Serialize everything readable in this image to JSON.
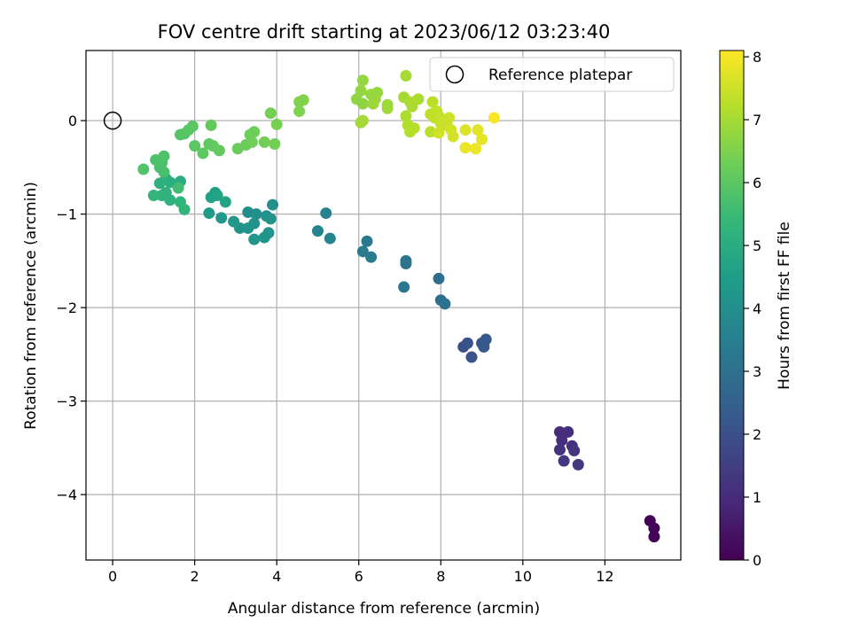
{
  "chart_data": {
    "type": "scatter",
    "title": "FOV centre drift starting at 2023/06/12 03:23:40",
    "xlabel": "Angular distance from reference (arcmin)",
    "ylabel": "Rotation from reference (arcmin)",
    "xlim": [
      -0.65,
      13.85
    ],
    "ylim": [
      -4.7,
      0.75
    ],
    "xticks": [
      0,
      2,
      4,
      6,
      8,
      10,
      12
    ],
    "yticks": [
      0,
      -1,
      -2,
      -3,
      -4
    ],
    "xtick_labels": [
      "0",
      "2",
      "4",
      "6",
      "8",
      "10",
      "12"
    ],
    "ytick_labels": [
      "0",
      "−1",
      "−2",
      "−3",
      "−4"
    ],
    "grid": true,
    "legend": {
      "label": "Reference platepar",
      "placement": "top-right",
      "marker": "open-circle"
    },
    "reference_point": {
      "x": 0,
      "y": 0
    },
    "colorbar": {
      "label": "Hours from first FF file",
      "colormap": "viridis",
      "range": [
        0,
        8.1
      ],
      "ticks": [
        0,
        1,
        2,
        3,
        4,
        5,
        6,
        7,
        8
      ],
      "tick_labels": [
        "0",
        "1",
        "2",
        "3",
        "4",
        "5",
        "6",
        "7",
        "8"
      ],
      "stops": [
        "#440154",
        "#482878",
        "#3e4989",
        "#31688e",
        "#26828e",
        "#1f9e89",
        "#35b779",
        "#6ece58",
        "#b5de2b",
        "#fde725"
      ]
    },
    "points": [
      {
        "x": 13.1,
        "y": -4.28,
        "t": 0.05
      },
      {
        "x": 13.2,
        "y": -4.36,
        "t": 0.08
      },
      {
        "x": 13.2,
        "y": -4.45,
        "t": 0.1
      },
      {
        "x": 10.9,
        "y": -3.33,
        "t": 1.0
      },
      {
        "x": 11.1,
        "y": -3.33,
        "t": 1.05
      },
      {
        "x": 10.95,
        "y": -3.42,
        "t": 1.1
      },
      {
        "x": 11.2,
        "y": -3.48,
        "t": 1.15
      },
      {
        "x": 10.9,
        "y": -3.52,
        "t": 1.2
      },
      {
        "x": 11.25,
        "y": -3.53,
        "t": 1.25
      },
      {
        "x": 11.0,
        "y": -3.64,
        "t": 1.3
      },
      {
        "x": 11.35,
        "y": -3.68,
        "t": 1.35
      },
      {
        "x": 8.55,
        "y": -2.42,
        "t": 2.0
      },
      {
        "x": 8.65,
        "y": -2.38,
        "t": 2.05
      },
      {
        "x": 8.75,
        "y": -2.53,
        "t": 2.1
      },
      {
        "x": 9.0,
        "y": -2.38,
        "t": 2.15
      },
      {
        "x": 9.05,
        "y": -2.42,
        "t": 2.2
      },
      {
        "x": 9.1,
        "y": -2.34,
        "t": 2.25
      },
      {
        "x": 7.95,
        "y": -1.69,
        "t": 2.9
      },
      {
        "x": 8.0,
        "y": -1.92,
        "t": 2.95
      },
      {
        "x": 8.1,
        "y": -1.96,
        "t": 3.0
      },
      {
        "x": 7.15,
        "y": -1.5,
        "t": 3.1
      },
      {
        "x": 7.15,
        "y": -1.53,
        "t": 3.12
      },
      {
        "x": 7.1,
        "y": -1.78,
        "t": 3.15
      },
      {
        "x": 6.2,
        "y": -1.29,
        "t": 3.3
      },
      {
        "x": 6.1,
        "y": -1.4,
        "t": 3.35
      },
      {
        "x": 6.3,
        "y": -1.46,
        "t": 3.4
      },
      {
        "x": 5.2,
        "y": -0.99,
        "t": 3.6
      },
      {
        "x": 5.0,
        "y": -1.18,
        "t": 3.65
      },
      {
        "x": 5.3,
        "y": -1.26,
        "t": 3.7
      },
      {
        "x": 3.3,
        "y": -0.98,
        "t": 4.0
      },
      {
        "x": 3.5,
        "y": -1.0,
        "t": 4.03
      },
      {
        "x": 3.9,
        "y": -0.9,
        "t": 4.05
      },
      {
        "x": 3.75,
        "y": -1.02,
        "t": 4.08
      },
      {
        "x": 3.85,
        "y": -1.05,
        "t": 4.1
      },
      {
        "x": 3.45,
        "y": -1.1,
        "t": 4.12
      },
      {
        "x": 3.1,
        "y": -1.15,
        "t": 4.15
      },
      {
        "x": 3.3,
        "y": -1.15,
        "t": 4.18
      },
      {
        "x": 3.8,
        "y": -1.2,
        "t": 4.2
      },
      {
        "x": 3.7,
        "y": -1.25,
        "t": 4.22
      },
      {
        "x": 3.45,
        "y": -1.27,
        "t": 4.25
      },
      {
        "x": 2.95,
        "y": -1.08,
        "t": 4.3
      },
      {
        "x": 2.65,
        "y": -1.04,
        "t": 4.35
      },
      {
        "x": 2.35,
        "y": -0.99,
        "t": 4.4
      },
      {
        "x": 2.4,
        "y": -0.82,
        "t": 4.6
      },
      {
        "x": 2.5,
        "y": -0.77,
        "t": 4.62
      },
      {
        "x": 2.55,
        "y": -0.8,
        "t": 4.65
      },
      {
        "x": 2.75,
        "y": -0.87,
        "t": 4.7
      },
      {
        "x": 1.65,
        "y": -0.65,
        "t": 5.0
      },
      {
        "x": 1.4,
        "y": -0.66,
        "t": 5.05
      },
      {
        "x": 1.3,
        "y": -0.62,
        "t": 5.08
      },
      {
        "x": 1.15,
        "y": -0.67,
        "t": 5.1
      },
      {
        "x": 1.3,
        "y": -0.77,
        "t": 5.15
      },
      {
        "x": 1.2,
        "y": -0.8,
        "t": 5.18
      },
      {
        "x": 1.4,
        "y": -0.85,
        "t": 5.2
      },
      {
        "x": 1.65,
        "y": -0.87,
        "t": 5.25
      },
      {
        "x": 1.75,
        "y": -0.95,
        "t": 5.3
      },
      {
        "x": 1.0,
        "y": -0.8,
        "t": 5.35
      },
      {
        "x": 1.6,
        "y": -0.72,
        "t": 5.6
      },
      {
        "x": 1.25,
        "y": -0.55,
        "t": 5.7
      },
      {
        "x": 1.15,
        "y": -0.5,
        "t": 5.72
      },
      {
        "x": 1.2,
        "y": -0.45,
        "t": 5.75
      },
      {
        "x": 1.05,
        "y": -0.42,
        "t": 5.78
      },
      {
        "x": 1.25,
        "y": -0.38,
        "t": 5.8
      },
      {
        "x": 0.75,
        "y": -0.52,
        "t": 5.85
      },
      {
        "x": 1.65,
        "y": -0.15,
        "t": 5.9
      },
      {
        "x": 1.75,
        "y": -0.14,
        "t": 5.92
      },
      {
        "x": 1.85,
        "y": -0.1,
        "t": 5.95
      },
      {
        "x": 1.95,
        "y": -0.06,
        "t": 5.98
      },
      {
        "x": 2.0,
        "y": -0.27,
        "t": 6.0
      },
      {
        "x": 2.2,
        "y": -0.35,
        "t": 6.05
      },
      {
        "x": 2.35,
        "y": -0.25,
        "t": 6.08
      },
      {
        "x": 2.45,
        "y": -0.27,
        "t": 6.1
      },
      {
        "x": 2.4,
        "y": -0.05,
        "t": 6.12
      },
      {
        "x": 2.6,
        "y": -0.32,
        "t": 6.15
      },
      {
        "x": 3.05,
        "y": -0.3,
        "t": 6.2
      },
      {
        "x": 3.25,
        "y": -0.26,
        "t": 6.22
      },
      {
        "x": 3.35,
        "y": -0.15,
        "t": 6.25
      },
      {
        "x": 3.45,
        "y": -0.12,
        "t": 6.28
      },
      {
        "x": 3.4,
        "y": -0.23,
        "t": 6.3
      },
      {
        "x": 3.7,
        "y": -0.23,
        "t": 6.32
      },
      {
        "x": 3.95,
        "y": -0.25,
        "t": 6.35
      },
      {
        "x": 3.85,
        "y": 0.08,
        "t": 6.38
      },
      {
        "x": 4.0,
        "y": -0.04,
        "t": 6.4
      },
      {
        "x": 4.55,
        "y": 0.1,
        "t": 6.5
      },
      {
        "x": 4.55,
        "y": 0.2,
        "t": 6.52
      },
      {
        "x": 4.65,
        "y": 0.22,
        "t": 6.55
      },
      {
        "x": 5.95,
        "y": 0.23,
        "t": 6.7
      },
      {
        "x": 6.1,
        "y": 0.18,
        "t": 6.72
      },
      {
        "x": 6.05,
        "y": 0.32,
        "t": 6.75
      },
      {
        "x": 6.1,
        "y": 0.43,
        "t": 6.78
      },
      {
        "x": 6.3,
        "y": 0.28,
        "t": 6.8
      },
      {
        "x": 6.45,
        "y": 0.3,
        "t": 6.82
      },
      {
        "x": 6.4,
        "y": 0.23,
        "t": 6.85
      },
      {
        "x": 6.35,
        "y": 0.18,
        "t": 6.88
      },
      {
        "x": 6.7,
        "y": 0.17,
        "t": 6.9
      },
      {
        "x": 6.7,
        "y": 0.13,
        "t": 6.92
      },
      {
        "x": 6.05,
        "y": -0.02,
        "t": 6.95
      },
      {
        "x": 6.1,
        "y": 0.0,
        "t": 6.97
      },
      {
        "x": 7.1,
        "y": 0.25,
        "t": 7.0
      },
      {
        "x": 7.15,
        "y": 0.48,
        "t": 7.02
      },
      {
        "x": 7.25,
        "y": 0.2,
        "t": 7.05
      },
      {
        "x": 7.3,
        "y": 0.15,
        "t": 7.08
      },
      {
        "x": 7.45,
        "y": 0.23,
        "t": 7.1
      },
      {
        "x": 7.15,
        "y": 0.05,
        "t": 7.12
      },
      {
        "x": 7.2,
        "y": -0.05,
        "t": 7.15
      },
      {
        "x": 7.25,
        "y": -0.12,
        "t": 7.18
      },
      {
        "x": 7.35,
        "y": -0.08,
        "t": 7.2
      },
      {
        "x": 7.75,
        "y": -0.12,
        "t": 7.25
      },
      {
        "x": 7.8,
        "y": 0.2,
        "t": 7.28
      },
      {
        "x": 7.75,
        "y": 0.07,
        "t": 7.3
      },
      {
        "x": 7.85,
        "y": 0.03,
        "t": 7.32
      },
      {
        "x": 7.9,
        "y": 0.1,
        "t": 7.35
      },
      {
        "x": 7.95,
        "y": 0.05,
        "t": 7.38
      },
      {
        "x": 8.0,
        "y": -0.03,
        "t": 7.4
      },
      {
        "x": 8.05,
        "y": 0.0,
        "t": 7.42
      },
      {
        "x": 8.1,
        "y": 0.0,
        "t": 7.45
      },
      {
        "x": 8.15,
        "y": -0.05,
        "t": 7.48
      },
      {
        "x": 8.2,
        "y": 0.03,
        "t": 7.5
      },
      {
        "x": 7.95,
        "y": -0.13,
        "t": 7.52
      },
      {
        "x": 8.25,
        "y": -0.1,
        "t": 7.55
      },
      {
        "x": 8.3,
        "y": -0.17,
        "t": 7.58
      },
      {
        "x": 8.6,
        "y": -0.1,
        "t": 7.7
      },
      {
        "x": 8.9,
        "y": -0.1,
        "t": 7.75
      },
      {
        "x": 9.0,
        "y": -0.2,
        "t": 7.8
      },
      {
        "x": 8.6,
        "y": -0.29,
        "t": 7.85
      },
      {
        "x": 8.85,
        "y": -0.3,
        "t": 7.9
      },
      {
        "x": 9.3,
        "y": 0.03,
        "t": 8.05
      }
    ]
  }
}
